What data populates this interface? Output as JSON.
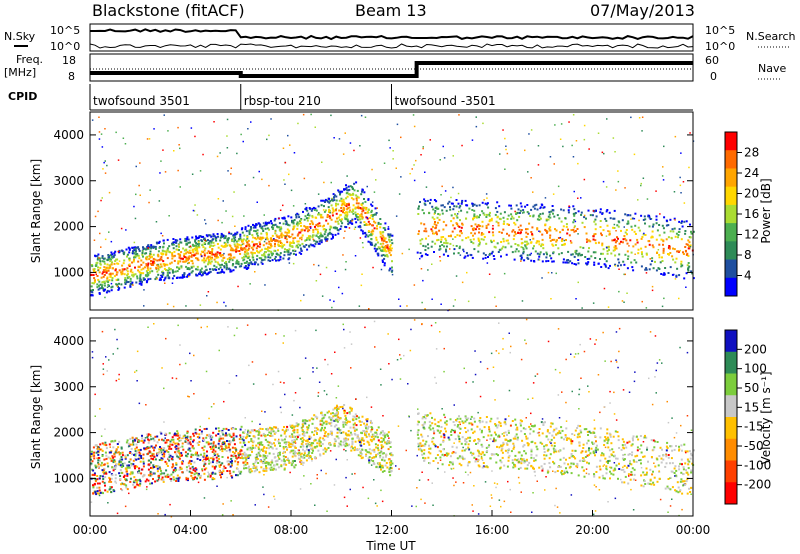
{
  "header": {
    "station": "Blackstone (fitACF)",
    "beam": "Beam 13",
    "date": "07/May/2013"
  },
  "status_panels": {
    "nsky_label": "N.Sky",
    "nsearch_label": "N.Search",
    "noise_ticks": [
      "10^5",
      "10^0"
    ],
    "freq_label": "Freq.",
    "freq_unit": "[MHz]",
    "freq_ticks": [
      "18",
      "8"
    ],
    "nave_label": "Nave",
    "nave_ticks": [
      "60",
      "0"
    ],
    "cpid_label": "CPID",
    "cpid_segments": [
      {
        "label": "twofsound 3501",
        "start_h": 0,
        "end_h": 6
      },
      {
        "label": "rbsp-tou 210",
        "start_h": 6,
        "end_h": 12
      },
      {
        "label": "twofsound -3501",
        "start_h": 12,
        "end_h": 24
      }
    ]
  },
  "chart_data": [
    {
      "type": "heatmap",
      "name": "power",
      "ylabel": "Slant Range [km]",
      "xlabel": "",
      "xlim": [
        0,
        24
      ],
      "ylim": [
        180,
        4500
      ],
      "yticks": [
        1000,
        2000,
        3000,
        4000
      ],
      "colorbar_label": "Power [dB]",
      "colorbar_ticks": [
        "28",
        "24",
        "20",
        "16",
        "12",
        "8",
        "4"
      ],
      "colorbar_colors": [
        "#ff0000",
        "#ff6a00",
        "#ffa500",
        "#ffd700",
        "#aadc32",
        "#4caf50",
        "#2e8b57",
        "#1f4fa0",
        "#0000ff"
      ],
      "bands": [
        {
          "h": [
            0,
            3,
            6
          ],
          "range_km": [
            950,
            1300,
            1500
          ],
          "width_km": 550,
          "level": "high"
        },
        {
          "h": [
            6,
            8,
            9.5,
            10.5,
            12
          ],
          "range_km": [
            1550,
            1800,
            2200,
            2600,
            1400
          ],
          "width_km": 600,
          "level": "high"
        },
        {
          "h": [
            13,
            16,
            20,
            24
          ],
          "range_km": [
            2000,
            1950,
            1800,
            1500
          ],
          "width_km": 800,
          "level": "mid"
        }
      ]
    },
    {
      "type": "heatmap",
      "name": "velocity",
      "ylabel": "Slant Range [km]",
      "xlabel": "Time UT",
      "xlim": [
        0,
        24
      ],
      "ylim": [
        180,
        4500
      ],
      "yticks": [
        1000,
        2000,
        3000,
        4000
      ],
      "xticks": [
        "00:00",
        "04:00",
        "08:00",
        "12:00",
        "16:00",
        "20:00",
        "00:00"
      ],
      "colorbar_label": "Velocity [m s⁻¹]",
      "colorbar_ticks": [
        "200",
        "100",
        "50",
        "15",
        "-15",
        "-50",
        "-100",
        "-200"
      ],
      "colorbar_colors": [
        "#1010c0",
        "#2e8b57",
        "#7ccd3c",
        "#c8c8c8",
        "#ffc000",
        "#ff8c00",
        "#ff4000",
        "#ff0000"
      ],
      "bands": [
        {
          "h": [
            0,
            3,
            6
          ],
          "range_km": [
            1200,
            1500,
            1600
          ],
          "width_km": 700,
          "level": "mixed"
        },
        {
          "h": [
            6,
            8,
            10,
            12
          ],
          "range_km": [
            1600,
            1700,
            2200,
            1500
          ],
          "width_km": 600,
          "level": "low"
        },
        {
          "h": [
            13,
            16,
            20,
            24
          ],
          "range_km": [
            1900,
            1800,
            1600,
            1200
          ],
          "width_km": 700,
          "level": "low"
        }
      ]
    }
  ]
}
